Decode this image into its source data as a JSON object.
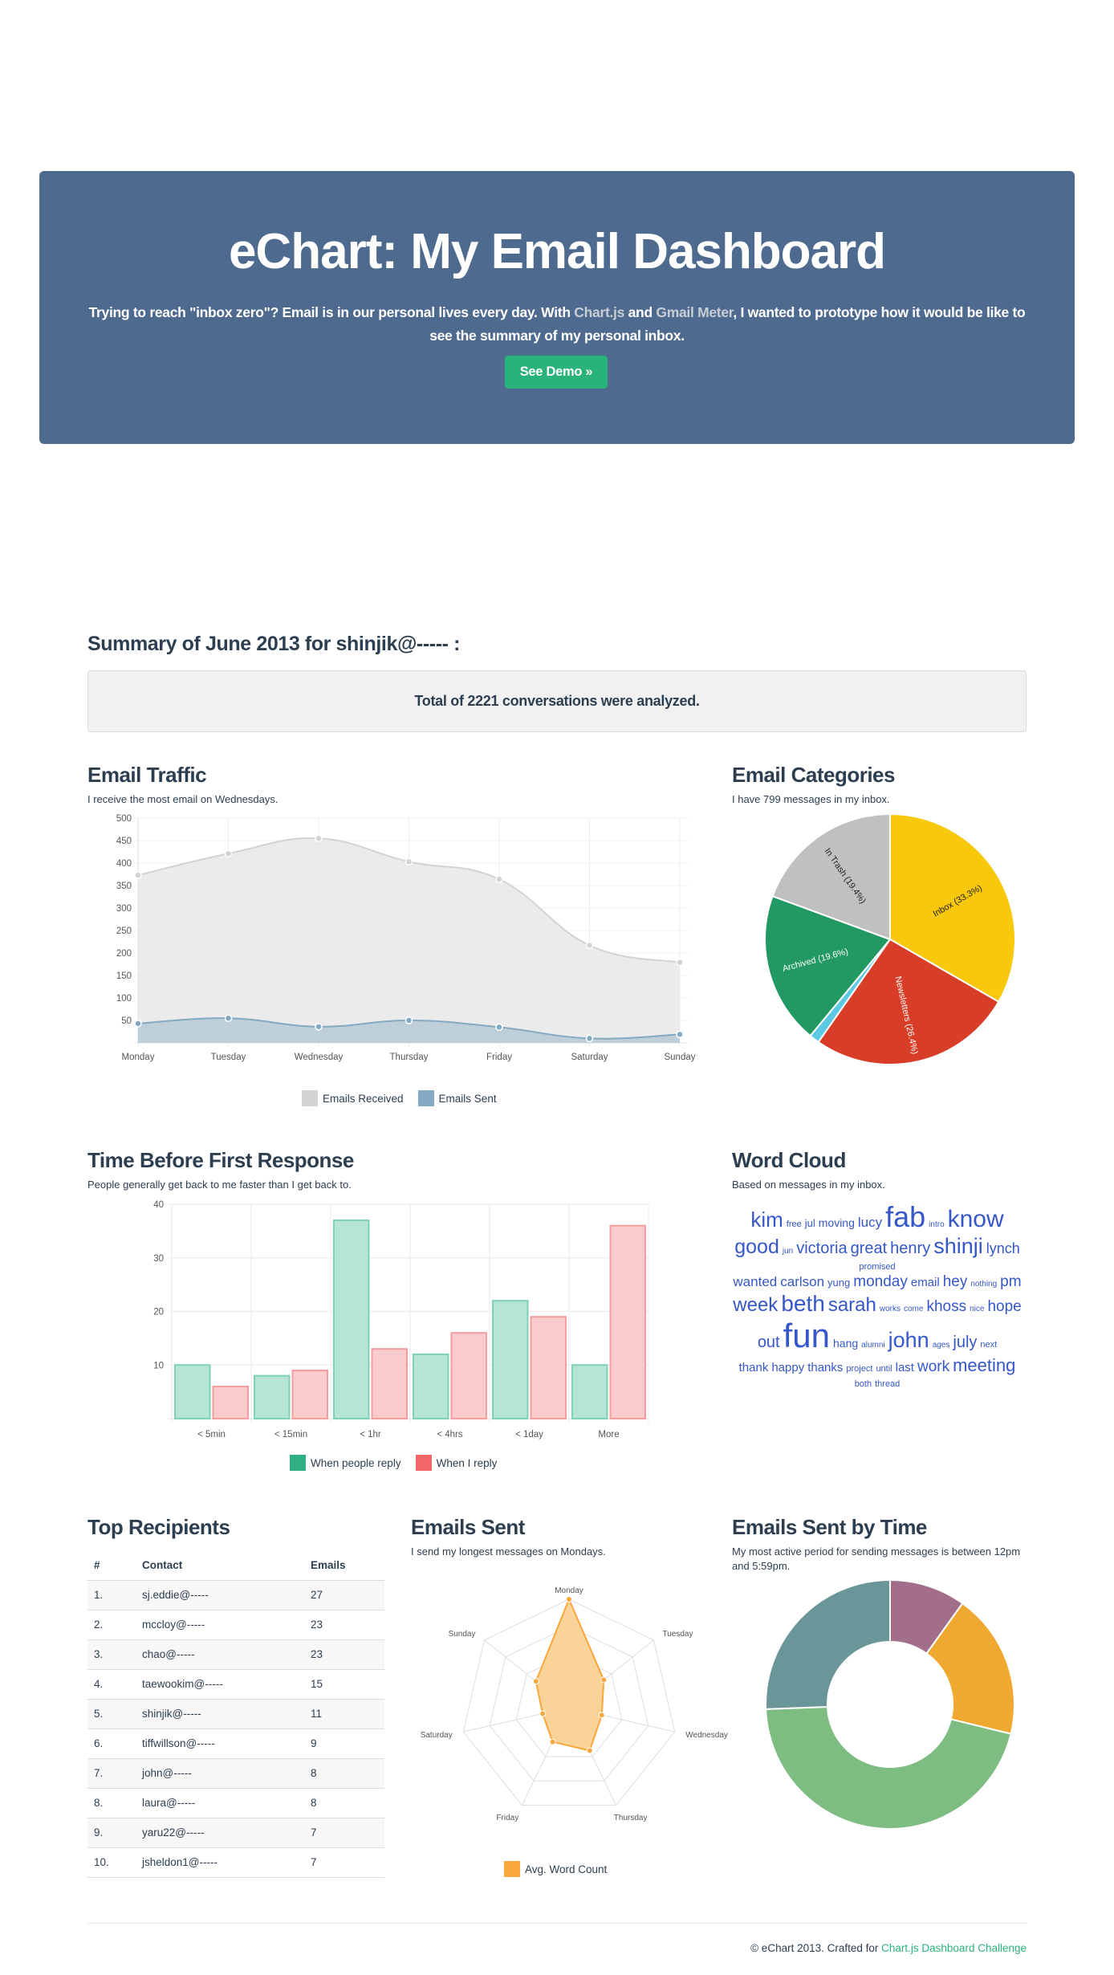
{
  "header": {
    "title": "eChart: My Email Dashboard",
    "intro_before": "Trying to reach \"inbox zero\"? Email is in our personal lives every day. With ",
    "link1": "Chart.js",
    "intro_mid": " and ",
    "link2": "Gmail Meter",
    "intro_after": ", I wanted to prototype how it would be like to see the summary of my personal inbox.",
    "button_label": "See Demo »",
    "bg_color": "#4e6a8e",
    "accent_color": "#2ab27b"
  },
  "summary": {
    "title": "Summary of June 2013 for shinjik@----- :",
    "total_text": "Total of 2221 conversations were analyzed."
  },
  "sections": {
    "traffic": {
      "title": "Email Traffic",
      "subtitle": "I receive the most email on Wednesdays."
    },
    "categories": {
      "title": "Email Categories",
      "subtitle": "I have 799 messages in my inbox."
    },
    "response": {
      "title": "Time Before First Response",
      "subtitle": "People generally get back to me faster than I get back to."
    },
    "cloud": {
      "title": "Word Cloud",
      "subtitle": "Based on messages in my inbox."
    },
    "recipients": {
      "title": "Top Recipients"
    },
    "sent": {
      "title": "Emails Sent",
      "subtitle": "I send my longest messages on Mondays."
    },
    "by_time": {
      "title": "Emails Sent by Time",
      "subtitle": "My most active period for sending messages is between 12pm and 5:59pm."
    }
  },
  "word_cloud": [
    {
      "w": "kim",
      "s": 26
    },
    {
      "w": "free",
      "s": 11
    },
    {
      "w": "jul",
      "s": 13
    },
    {
      "w": "moving",
      "s": 14
    },
    {
      "w": "lucy",
      "s": 17
    },
    {
      "w": "fab",
      "s": 36
    },
    {
      "w": "intro",
      "s": 10
    },
    {
      "w": "know",
      "s": 30
    },
    {
      "w": "good",
      "s": 25
    },
    {
      "w": "jun",
      "s": 10
    },
    {
      "w": "victoria",
      "s": 20
    },
    {
      "w": "great",
      "s": 20
    },
    {
      "w": "henry",
      "s": 20
    },
    {
      "w": "shinji",
      "s": 27
    },
    {
      "w": "lynch",
      "s": 18
    },
    {
      "w": "promised",
      "s": 11
    },
    {
      "w": "wanted",
      "s": 17
    },
    {
      "w": "carlson",
      "s": 17
    },
    {
      "w": "yung",
      "s": 13
    },
    {
      "w": "monday",
      "s": 19
    },
    {
      "w": "email",
      "s": 15
    },
    {
      "w": "hey",
      "s": 19
    },
    {
      "w": "nothing",
      "s": 10
    },
    {
      "w": "pm",
      "s": 19
    },
    {
      "w": "week",
      "s": 24
    },
    {
      "w": "beth",
      "s": 28
    },
    {
      "w": "sarah",
      "s": 24
    },
    {
      "w": "works",
      "s": 10
    },
    {
      "w": "come",
      "s": 10
    },
    {
      "w": "khoss",
      "s": 19
    },
    {
      "w": "nice",
      "s": 10
    },
    {
      "w": "hope",
      "s": 19
    },
    {
      "w": "out",
      "s": 20
    },
    {
      "w": "fun",
      "s": 42
    },
    {
      "w": "hang",
      "s": 14
    },
    {
      "w": "alumni",
      "s": 10
    },
    {
      "w": "john",
      "s": 27
    },
    {
      "w": "ages",
      "s": 10
    },
    {
      "w": "july",
      "s": 20
    },
    {
      "w": "next",
      "s": 11
    },
    {
      "w": "thank",
      "s": 15
    },
    {
      "w": "happy",
      "s": 15
    },
    {
      "w": "thanks",
      "s": 15
    },
    {
      "w": "project",
      "s": 11
    },
    {
      "w": "until",
      "s": 11
    },
    {
      "w": "last",
      "s": 15
    },
    {
      "w": "work",
      "s": 19
    },
    {
      "w": "meeting",
      "s": 22
    },
    {
      "w": "both",
      "s": 11
    },
    {
      "w": "thread",
      "s": 11
    }
  ],
  "recipients": {
    "columns": [
      "#",
      "Contact",
      "Emails"
    ],
    "rows": [
      [
        "1.",
        "sj.eddie@-----",
        "27"
      ],
      [
        "2.",
        "mccloy@-----",
        "23"
      ],
      [
        "3.",
        "chao@-----",
        "23"
      ],
      [
        "4.",
        "taewookim@-----",
        "15"
      ],
      [
        "5.",
        "shinjik@-----",
        "11"
      ],
      [
        "6.",
        "tiffwillson@-----",
        "9"
      ],
      [
        "7.",
        "john@-----",
        "8"
      ],
      [
        "8.",
        "laura@-----",
        "8"
      ],
      [
        "9.",
        "yaru22@-----",
        "7"
      ],
      [
        "10.",
        "jsheldon1@-----",
        "7"
      ]
    ]
  },
  "footer": {
    "text": "© eChart 2013. Crafted for ",
    "link": "Chart.js Dashboard Challenge"
  },
  "chart_data": [
    {
      "id": "traffic",
      "type": "area",
      "title": "Email Traffic",
      "categories": [
        "Monday",
        "Tuesday",
        "Wednesday",
        "Thursday",
        "Friday",
        "Saturday",
        "Sunday"
      ],
      "series": [
        {
          "name": "Emails Received",
          "values": [
            373,
            421,
            455,
            403,
            364,
            217,
            179
          ],
          "color": "#d3d3d3",
          "fill": "#e8e8e8"
        },
        {
          "name": "Emails Sent",
          "values": [
            43,
            55,
            36,
            50,
            35,
            10,
            19
          ],
          "color": "#84a9c2",
          "fill": "#b7cad6"
        }
      ],
      "ylim": [
        0,
        500
      ],
      "yticks": [
        50,
        100,
        150,
        200,
        250,
        300,
        350,
        400,
        450,
        500
      ],
      "grid": true,
      "legend": "bottom"
    },
    {
      "id": "categories",
      "type": "pie",
      "title": "Email Categories",
      "slices": [
        {
          "label": "Inbox (33.3%)",
          "value": 33.3,
          "color": "#f8c80d"
        },
        {
          "label": "Newsletters (26.4%)",
          "value": 26.4,
          "color": "#d83e27"
        },
        {
          "label": "",
          "value": 1.3,
          "color": "#5bc8e4"
        },
        {
          "label": "Archived (19.6%)",
          "value": 19.6,
          "color": "#229963"
        },
        {
          "label": "In Trash (19.4%)",
          "value": 19.4,
          "color": "#c0c0c0"
        }
      ]
    },
    {
      "id": "response",
      "type": "bar",
      "title": "Time Before First Response",
      "categories": [
        "< 5min",
        "< 15min",
        "< 1hr",
        "< 4hrs",
        "< 1day",
        "More"
      ],
      "series": [
        {
          "name": "When people reply",
          "values": [
            10,
            8,
            37,
            12,
            22,
            10
          ],
          "color": "#2fb083",
          "fill": "#b6e5d7",
          "stroke": "#7fd1b4"
        },
        {
          "name": "When I reply",
          "values": [
            6,
            9,
            13,
            16,
            19,
            36
          ],
          "color": "#f36566",
          "fill": "#f9cbcc",
          "stroke": "#f49d9e"
        }
      ],
      "ylim": [
        0,
        40
      ],
      "yticks": [
        10,
        20,
        30,
        40
      ],
      "grid": true,
      "legend": "bottom"
    },
    {
      "id": "sent",
      "type": "radar",
      "title": "Emails Sent",
      "categories": [
        "Monday",
        "Tuesday",
        "Wednesday",
        "Thursday",
        "Friday",
        "Saturday",
        "Sunday"
      ],
      "series": [
        {
          "name": "Avg. Word Count",
          "values": [
            100,
            41,
            31,
            44,
            35,
            25,
            39
          ],
          "color": "#f7a73c",
          "fill": "#f9d192"
        }
      ],
      "scale_max": 100,
      "scale_steps": 4,
      "legend": "bottom"
    },
    {
      "id": "by_time",
      "type": "pie",
      "subtype": "doughnut",
      "title": "Emails Sent by Time",
      "slices": [
        {
          "value": 9.9,
          "color": "#a36e8a"
        },
        {
          "value": 18.9,
          "color": "#efa830"
        },
        {
          "value": 45.6,
          "color": "#7ebd82"
        },
        {
          "value": 25.6,
          "color": "#6b9699"
        }
      ]
    }
  ]
}
